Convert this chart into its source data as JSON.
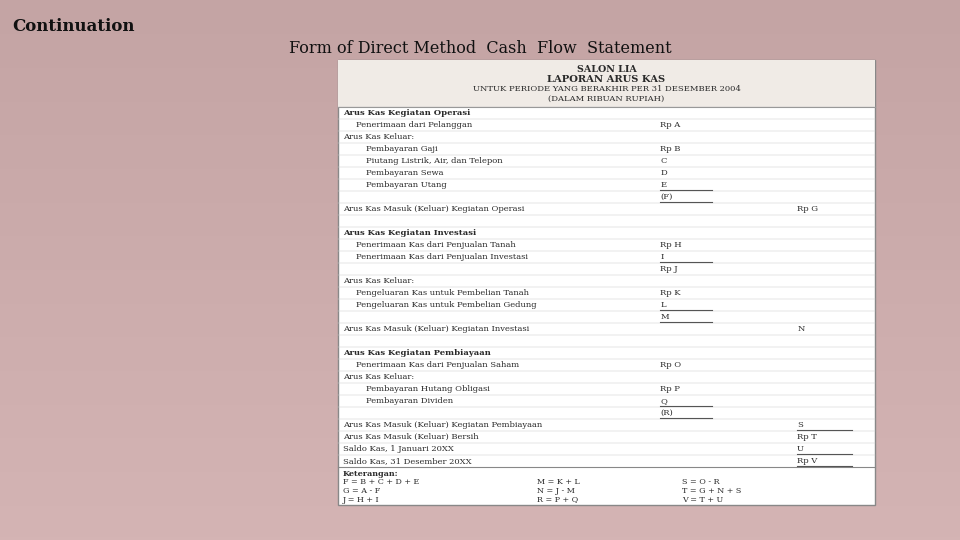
{
  "bg_color_top": "#b88888",
  "bg_color_bottom": "#c8a8a8",
  "title_top_left": "Continuation",
  "title_main": "Form of Direct Method  Cash  Flow  Statement",
  "table_header_lines": [
    "SALON LIA",
    "LAPORAN ARUS KAS",
    "UNTUK PERIODE YANG BERAKHIR PER 31 DESEMBER 2004",
    "(DALAM RIBUAN RUPIAH)"
  ],
  "rows": [
    {
      "indent": 0,
      "bold": true,
      "text": "Arus Kas Kegiatan Operasi",
      "col1": "",
      "col2": "",
      "ul1": false,
      "ul2": false,
      "spacer": false
    },
    {
      "indent": 1,
      "bold": false,
      "text": "Penerimaan dari Pelanggan",
      "col1": "Rp A",
      "col2": "",
      "ul1": false,
      "ul2": false,
      "spacer": false
    },
    {
      "indent": 0,
      "bold": false,
      "text": "Arus Kas Keluar:",
      "col1": "",
      "col2": "",
      "ul1": false,
      "ul2": false,
      "spacer": false
    },
    {
      "indent": 2,
      "bold": false,
      "text": "Pembayaran Gaji",
      "col1": "Rp B",
      "col2": "",
      "ul1": false,
      "ul2": false,
      "spacer": false
    },
    {
      "indent": 2,
      "bold": false,
      "text": "Piutang Listrik, Air, dan Telepon",
      "col1": "C",
      "col2": "",
      "ul1": false,
      "ul2": false,
      "spacer": false
    },
    {
      "indent": 2,
      "bold": false,
      "text": "Pembayaran Sewa",
      "col1": "D",
      "col2": "",
      "ul1": false,
      "ul2": false,
      "spacer": false
    },
    {
      "indent": 2,
      "bold": false,
      "text": "Pembayaran Utang",
      "col1": "E",
      "col2": "",
      "ul1": true,
      "ul2": false,
      "spacer": false
    },
    {
      "indent": 0,
      "bold": false,
      "text": "",
      "col1": "(F)",
      "col2": "",
      "ul1": true,
      "ul2": false,
      "spacer": false
    },
    {
      "indent": 0,
      "bold": false,
      "text": "Arus Kas Masuk (Keluar) Kegiatan Operasi",
      "col1": "",
      "col2": "Rp G",
      "ul1": false,
      "ul2": false,
      "spacer": false
    },
    {
      "indent": 0,
      "bold": false,
      "text": "",
      "col1": "",
      "col2": "",
      "ul1": false,
      "ul2": false,
      "spacer": true
    },
    {
      "indent": 0,
      "bold": true,
      "text": "Arus Kas Kegiatan Investasi",
      "col1": "",
      "col2": "",
      "ul1": false,
      "ul2": false,
      "spacer": false
    },
    {
      "indent": 1,
      "bold": false,
      "text": "Penerimaan Kas dari Penjualan Tanah",
      "col1": "Rp H",
      "col2": "",
      "ul1": false,
      "ul2": false,
      "spacer": false
    },
    {
      "indent": 1,
      "bold": false,
      "text": "Penerimaan Kas dari Penjualan Investasi",
      "col1": "I",
      "col2": "",
      "ul1": true,
      "ul2": false,
      "spacer": false
    },
    {
      "indent": 0,
      "bold": false,
      "text": "",
      "col1": "Rp J",
      "col2": "",
      "ul1": false,
      "ul2": false,
      "spacer": false
    },
    {
      "indent": 0,
      "bold": false,
      "text": "Arus Kas Keluar:",
      "col1": "",
      "col2": "",
      "ul1": false,
      "ul2": false,
      "spacer": false
    },
    {
      "indent": 1,
      "bold": false,
      "text": "Pengeluaran Kas untuk Pembelian Tanah",
      "col1": "Rp K",
      "col2": "",
      "ul1": false,
      "ul2": false,
      "spacer": false
    },
    {
      "indent": 1,
      "bold": false,
      "text": "Pengeluaran Kas untuk Pembelian Gedung",
      "col1": "L",
      "col2": "",
      "ul1": true,
      "ul2": false,
      "spacer": false
    },
    {
      "indent": 0,
      "bold": false,
      "text": "",
      "col1": "M",
      "col2": "",
      "ul1": true,
      "ul2": false,
      "spacer": false
    },
    {
      "indent": 0,
      "bold": false,
      "text": "Arus Kas Masuk (Keluar) Kegiatan Investasi",
      "col1": "",
      "col2": "N",
      "ul1": false,
      "ul2": false,
      "spacer": false
    },
    {
      "indent": 0,
      "bold": false,
      "text": "",
      "col1": "",
      "col2": "",
      "ul1": false,
      "ul2": false,
      "spacer": true
    },
    {
      "indent": 0,
      "bold": true,
      "text": "Arus Kas Kegiatan Pembiayaan",
      "col1": "",
      "col2": "",
      "ul1": false,
      "ul2": false,
      "spacer": false
    },
    {
      "indent": 1,
      "bold": false,
      "text": "Penerimaan Kas dari Penjualan Saham",
      "col1": "Rp O",
      "col2": "",
      "ul1": false,
      "ul2": false,
      "spacer": false
    },
    {
      "indent": 0,
      "bold": false,
      "text": "Arus Kas Keluar:",
      "col1": "",
      "col2": "",
      "ul1": false,
      "ul2": false,
      "spacer": false
    },
    {
      "indent": 2,
      "bold": false,
      "text": "Pembayaran Hutang Obligasi",
      "col1": "Rp P",
      "col2": "",
      "ul1": false,
      "ul2": false,
      "spacer": false
    },
    {
      "indent": 2,
      "bold": false,
      "text": "Pembayaran Dividen",
      "col1": "Q",
      "col2": "",
      "ul1": true,
      "ul2": false,
      "spacer": false
    },
    {
      "indent": 0,
      "bold": false,
      "text": "",
      "col1": "(R)",
      "col2": "",
      "ul1": true,
      "ul2": false,
      "spacer": false
    },
    {
      "indent": 0,
      "bold": false,
      "text": "Arus Kas Masuk (Keluar) Kegiatan Pembiayaan",
      "col1": "",
      "col2": "S",
      "ul1": false,
      "ul2": true,
      "spacer": false
    },
    {
      "indent": 0,
      "bold": false,
      "text": "Arus Kas Masuk (Keluar) Bersih",
      "col1": "",
      "col2": "Rp T",
      "ul1": false,
      "ul2": false,
      "spacer": false
    },
    {
      "indent": 0,
      "bold": false,
      "text": "Saldo Kas, 1 Januari 20XX",
      "col1": "",
      "col2": "U",
      "ul1": false,
      "ul2": true,
      "spacer": false
    },
    {
      "indent": 0,
      "bold": false,
      "text": "Saldo Kas, 31 Desember 20XX",
      "col1": "",
      "col2": "Rp V",
      "ul1": false,
      "ul2": true,
      "spacer": false
    }
  ],
  "footnote_col1": [
    "Keterangan:",
    "F = B + C + D + E",
    "G = A - F",
    "J = H + I"
  ],
  "footnote_col2": [
    "",
    "M = K + L",
    "N = J - M",
    "R = P + Q"
  ],
  "footnote_col3": [
    "",
    "S = O - R",
    "T = G + N + S",
    "V = T + U"
  ],
  "text_color": "#2a2a2a",
  "border_color": "#999999",
  "line_color": "#aaaaaa"
}
